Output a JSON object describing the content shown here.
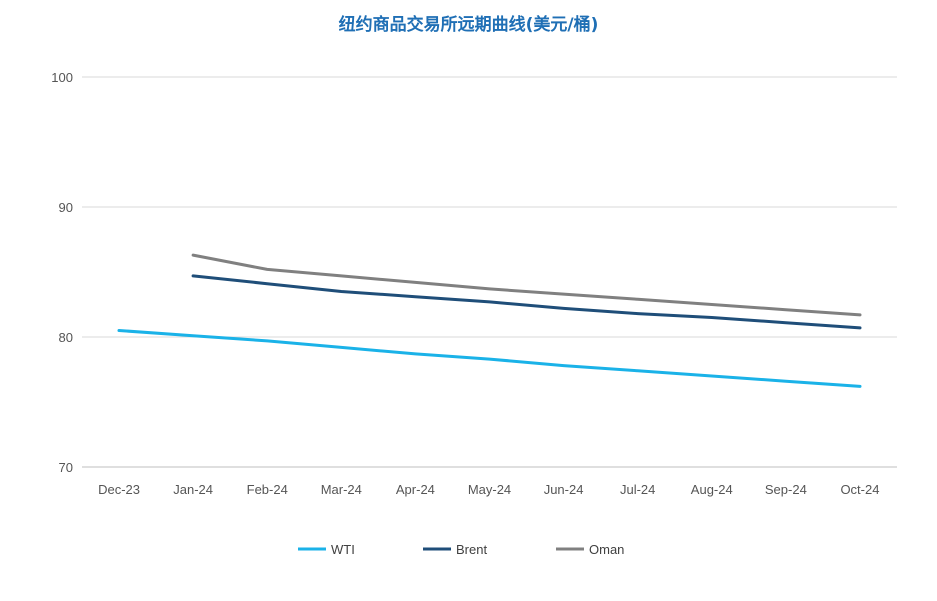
{
  "chart_data": {
    "type": "line",
    "title": "纽约商品交易所远期曲线(美元/桶)",
    "xlabel": "",
    "ylabel": "",
    "categories": [
      "Dec-23",
      "Jan-24",
      "Feb-24",
      "Mar-24",
      "Apr-24",
      "May-24",
      "Jun-24",
      "Jul-24",
      "Aug-24",
      "Sep-24",
      "Oct-24"
    ],
    "ylim": [
      70,
      100
    ],
    "yticks": [
      70,
      80,
      90,
      100
    ],
    "grid": true,
    "legend_position": "bottom",
    "series": [
      {
        "name": "WTI",
        "color": "#1ab2e8",
        "values": [
          80.5,
          80.1,
          79.7,
          79.2,
          78.7,
          78.3,
          77.8,
          77.4,
          77.0,
          76.6,
          76.2
        ]
      },
      {
        "name": "Brent",
        "color": "#1f4e79",
        "values": [
          null,
          84.7,
          84.1,
          83.5,
          83.1,
          82.7,
          82.2,
          81.8,
          81.5,
          81.1,
          80.7
        ]
      },
      {
        "name": "Oman",
        "color": "#808080",
        "values": [
          null,
          86.3,
          85.2,
          84.7,
          84.2,
          83.7,
          83.3,
          82.9,
          82.5,
          82.1,
          81.7
        ]
      }
    ]
  }
}
